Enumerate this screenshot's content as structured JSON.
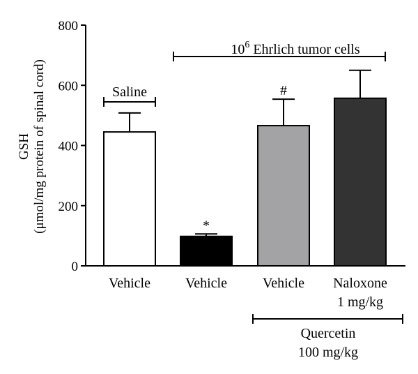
{
  "chart_data": {
    "type": "bar",
    "ylabel_line1": "GSH",
    "ylabel_line2": "(μmol/mg protein of spinal cord)",
    "ylim": [
      0,
      800
    ],
    "yticks": [
      0,
      200,
      400,
      600,
      800
    ],
    "grid": false,
    "categories": [
      {
        "line1": "Vehicle",
        "line2": ""
      },
      {
        "line1": "Vehicle",
        "line2": ""
      },
      {
        "line1": "Vehicle",
        "line2": ""
      },
      {
        "line1": "Naloxone",
        "line2": "1 mg/kg"
      }
    ],
    "bars": [
      {
        "value": 445,
        "error": 63,
        "color": "#ffffff",
        "significance": ""
      },
      {
        "value": 98,
        "error": 8,
        "color": "#000000",
        "significance": "*"
      },
      {
        "value": 466,
        "error": 88,
        "color": "#a3a3a5",
        "significance": "#"
      },
      {
        "value": 557,
        "error": 93,
        "color": "#333333",
        "significance": ""
      }
    ],
    "annotations": {
      "saline": "Saline",
      "tumor_base": "10",
      "tumor_exp": "6",
      "tumor_rest": " Ehrlich tumor cells",
      "quercetin_line1": "Quercetin",
      "quercetin_line2": "100 mg/kg"
    }
  }
}
